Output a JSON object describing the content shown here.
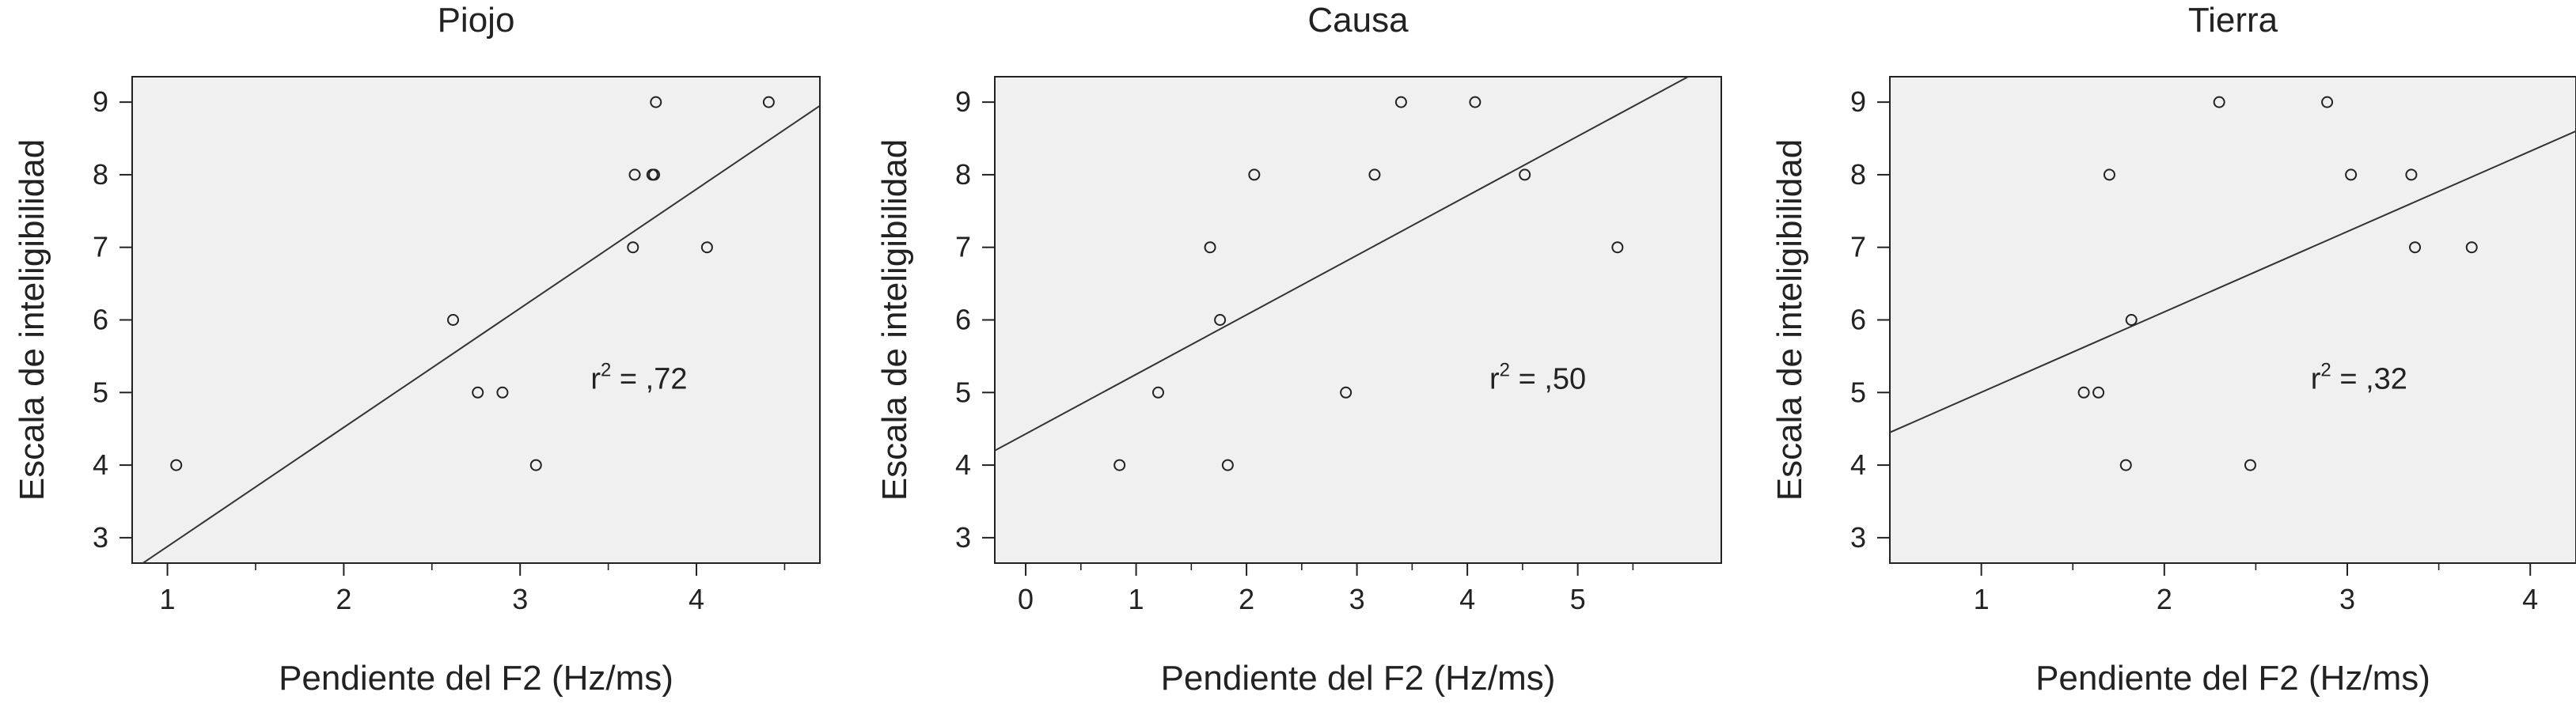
{
  "chart_data": [
    {
      "type": "scatter",
      "title": "Piojo",
      "xlabel": "Pendiente del F2 (Hz/ms)",
      "ylabel": "Escala de inteligibilidad",
      "xlim": [
        0.8,
        4.7
      ],
      "ylim": [
        2.65,
        9.35
      ],
      "xticks": [
        1,
        2,
        3,
        4
      ],
      "yticks": [
        3,
        4,
        5,
        6,
        7,
        8,
        9
      ],
      "points": [
        {
          "x": 1.05,
          "y": 4
        },
        {
          "x": 2.62,
          "y": 6
        },
        {
          "x": 2.76,
          "y": 5
        },
        {
          "x": 2.9,
          "y": 5
        },
        {
          "x": 3.09,
          "y": 4
        },
        {
          "x": 3.64,
          "y": 7
        },
        {
          "x": 3.65,
          "y": 8
        },
        {
          "x": 3.75,
          "y": 8
        },
        {
          "x": 3.76,
          "y": 8
        },
        {
          "x": 3.77,
          "y": 9
        },
        {
          "x": 4.06,
          "y": 7
        },
        {
          "x": 4.41,
          "y": 9
        }
      ],
      "fit": {
        "x0": 0.8,
        "y0": 2.55,
        "x1": 4.7,
        "y1": 8.95
      },
      "annotation": {
        "base": "r",
        "exp": "2",
        "rest": " = ,72",
        "x": 3.4,
        "y": 5.05
      }
    },
    {
      "type": "scatter",
      "title": "Causa",
      "xlabel": "Pendiente del F2 (Hz/ms)",
      "ylabel": "Escala de inteligibilidad",
      "xlim": [
        -0.28,
        6.3
      ],
      "ylim": [
        2.65,
        9.35
      ],
      "xticks": [
        0,
        1,
        2,
        3,
        4,
        5
      ],
      "yticks": [
        3,
        4,
        5,
        6,
        7,
        8,
        9
      ],
      "points": [
        {
          "x": 0.85,
          "y": 4
        },
        {
          "x": 1.2,
          "y": 5
        },
        {
          "x": 1.67,
          "y": 7
        },
        {
          "x": 1.76,
          "y": 6
        },
        {
          "x": 1.83,
          "y": 4
        },
        {
          "x": 2.07,
          "y": 8
        },
        {
          "x": 2.9,
          "y": 5
        },
        {
          "x": 3.16,
          "y": 8
        },
        {
          "x": 3.4,
          "y": 9
        },
        {
          "x": 4.07,
          "y": 9
        },
        {
          "x": 4.52,
          "y": 8
        },
        {
          "x": 5.36,
          "y": 7
        }
      ],
      "fit": {
        "x0": -0.28,
        "y0": 4.2,
        "x1": 6.0,
        "y1": 9.35
      },
      "annotation": {
        "base": "r",
        "exp": "2",
        "rest": " = ,50",
        "x": 4.2,
        "y": 5.05
      }
    },
    {
      "type": "scatter",
      "title": "Tierra",
      "xlabel": "Pendiente del F2 (Hz/ms)",
      "ylabel": "Escala de inteligibilidad",
      "xlim": [
        0.5,
        4.25
      ],
      "ylim": [
        2.65,
        9.35
      ],
      "xticks": [
        1,
        2,
        3,
        4
      ],
      "yticks": [
        3,
        4,
        5,
        6,
        7,
        8,
        9
      ],
      "points": [
        {
          "x": 1.56,
          "y": 5
        },
        {
          "x": 1.64,
          "y": 5
        },
        {
          "x": 1.7,
          "y": 8
        },
        {
          "x": 1.79,
          "y": 4
        },
        {
          "x": 1.82,
          "y": 6
        },
        {
          "x": 2.3,
          "y": 9
        },
        {
          "x": 2.47,
          "y": 4
        },
        {
          "x": 2.89,
          "y": 9
        },
        {
          "x": 3.02,
          "y": 8
        },
        {
          "x": 3.35,
          "y": 8
        },
        {
          "x": 3.37,
          "y": 7
        },
        {
          "x": 3.68,
          "y": 7
        }
      ],
      "fit": {
        "x0": 0.5,
        "y0": 4.45,
        "x1": 4.25,
        "y1": 8.6
      },
      "annotation": {
        "base": "r",
        "exp": "2",
        "rest": " = ,32",
        "x": 2.8,
        "y": 5.05
      }
    }
  ]
}
